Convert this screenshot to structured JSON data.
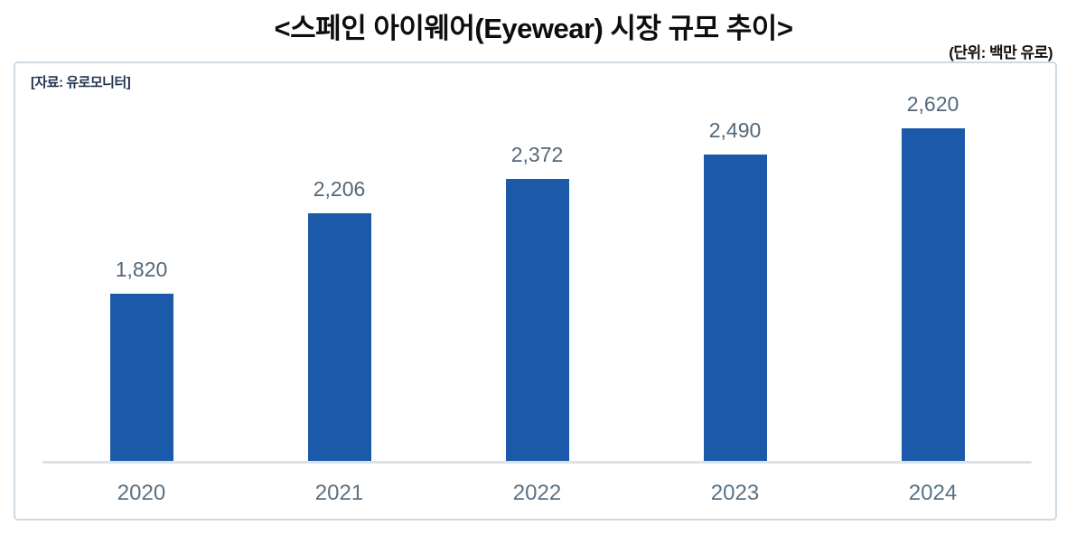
{
  "page": {
    "title": "<스페인 아이웨어(Eyewear) 시장 규모 추이>",
    "unit_label": "(단위: 백만 유로)",
    "source_label": "[자료: 유로모니터]"
  },
  "colors": {
    "bar": "#1a5aa8",
    "value_label": "#53687a",
    "tick_label": "#5a7183",
    "axis_line": "#dce2e8",
    "frame_border": "#cdd9e3",
    "title_text": "#0d0d0d"
  },
  "chart_data": {
    "type": "bar",
    "title": "<스페인 아이웨어(Eyewear) 시장 규모 추이>",
    "categories": [
      "2020",
      "2021",
      "2022",
      "2023",
      "2024"
    ],
    "values": [
      1820,
      2206,
      2372,
      2490,
      2620
    ],
    "value_labels": [
      "1,820",
      "2,206",
      "2,372",
      "2,490",
      "2,620"
    ],
    "xlabel": "",
    "ylabel": "",
    "unit": "백만 유로",
    "source": "유로모니터",
    "ylim": [
      1000,
      2750
    ],
    "grid": false,
    "legend": false
  }
}
